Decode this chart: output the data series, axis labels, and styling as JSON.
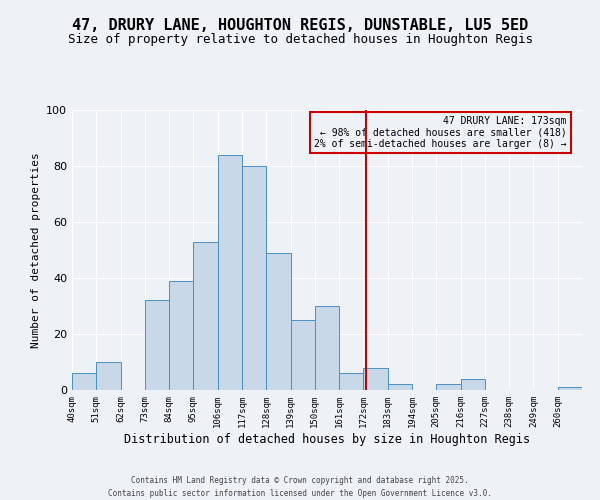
{
  "title": "47, DRURY LANE, HOUGHTON REGIS, DUNSTABLE, LU5 5ED",
  "subtitle": "Size of property relative to detached houses in Houghton Regis",
  "xlabel": "Distribution of detached houses by size in Houghton Regis",
  "ylabel": "Number of detached properties",
  "bin_labels": [
    "40sqm",
    "51sqm",
    "62sqm",
    "73sqm",
    "84sqm",
    "95sqm",
    "106sqm",
    "117sqm",
    "128sqm",
    "139sqm",
    "150sqm",
    "161sqm",
    "172sqm",
    "183sqm",
    "194sqm",
    "205sqm",
    "216sqm",
    "227sqm",
    "238sqm",
    "249sqm",
    "260sqm"
  ],
  "bin_edges": [
    40,
    51,
    62,
    73,
    84,
    95,
    106,
    117,
    128,
    139,
    150,
    161,
    172,
    183,
    194,
    205,
    216,
    227,
    238,
    249,
    260
  ],
  "bar_heights": [
    6,
    10,
    0,
    32,
    39,
    53,
    84,
    80,
    49,
    25,
    30,
    6,
    8,
    2,
    0,
    2,
    4,
    0,
    0,
    0,
    1
  ],
  "bar_color": "#c8d8e8",
  "bar_edge_color": "#4a90c4",
  "vline_x": 173,
  "vline_color": "#cc0000",
  "annotation_title": "47 DRURY LANE: 173sqm",
  "annotation_line1": "← 98% of detached houses are smaller (418)",
  "annotation_line2": "2% of semi-detached houses are larger (8) →",
  "annotation_box_color": "#cc0000",
  "ylim": [
    0,
    100
  ],
  "yticks": [
    0,
    20,
    40,
    60,
    80,
    100
  ],
  "footnote1": "Contains HM Land Registry data © Crown copyright and database right 2025.",
  "footnote2": "Contains public sector information licensed under the Open Government Licence v3.0.",
  "bg_color": "#eef2f7",
  "grid_color": "#ffffff",
  "title_fontsize": 11,
  "subtitle_fontsize": 9,
  "ylabel_fontsize": 8,
  "xlabel_fontsize": 8.5
}
